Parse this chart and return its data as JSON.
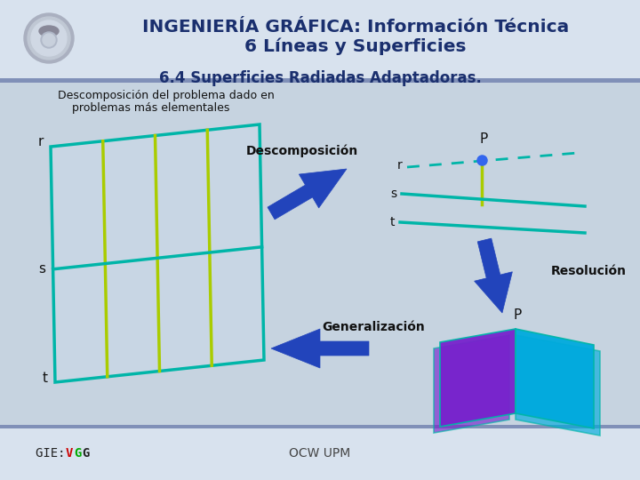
{
  "title_line1": "INGENIERÍA GRÁFICA: Información Técnica",
  "title_line2": "6 Líneas y Superficies",
  "header_bg": "#d8e2ee",
  "header_border": "#8090b0",
  "main_bg": "#c2d0de",
  "title_color": "#1a2f6e",
  "subtitle": "6.4 Superficies Radiadas Adaptadoras.",
  "subtitle_color": "#1a2f6e",
  "desc_line1": "Descomposición del problema dado en",
  "desc_line2": "    problemas más elementales",
  "descomp_label": "Descomposición",
  "resolucion_label": "Resolución",
  "generalizacion_label": "Generalización",
  "footer_left_pre": "GIE: ",
  "footer_v": "V",
  "footer_g1": "G",
  "footer_g2": "G",
  "footer_right": "OCW UPM",
  "teal_color": "#00b5a8",
  "lime_color": "#aacc00",
  "blue_arrow": "#2244bb",
  "purple_color": "#7722cc",
  "cyan_color": "#00aadd",
  "dot_color": "#3366ee",
  "v_color": "#cc0000",
  "g1_color": "#00aa00",
  "g2_color": "#222222"
}
